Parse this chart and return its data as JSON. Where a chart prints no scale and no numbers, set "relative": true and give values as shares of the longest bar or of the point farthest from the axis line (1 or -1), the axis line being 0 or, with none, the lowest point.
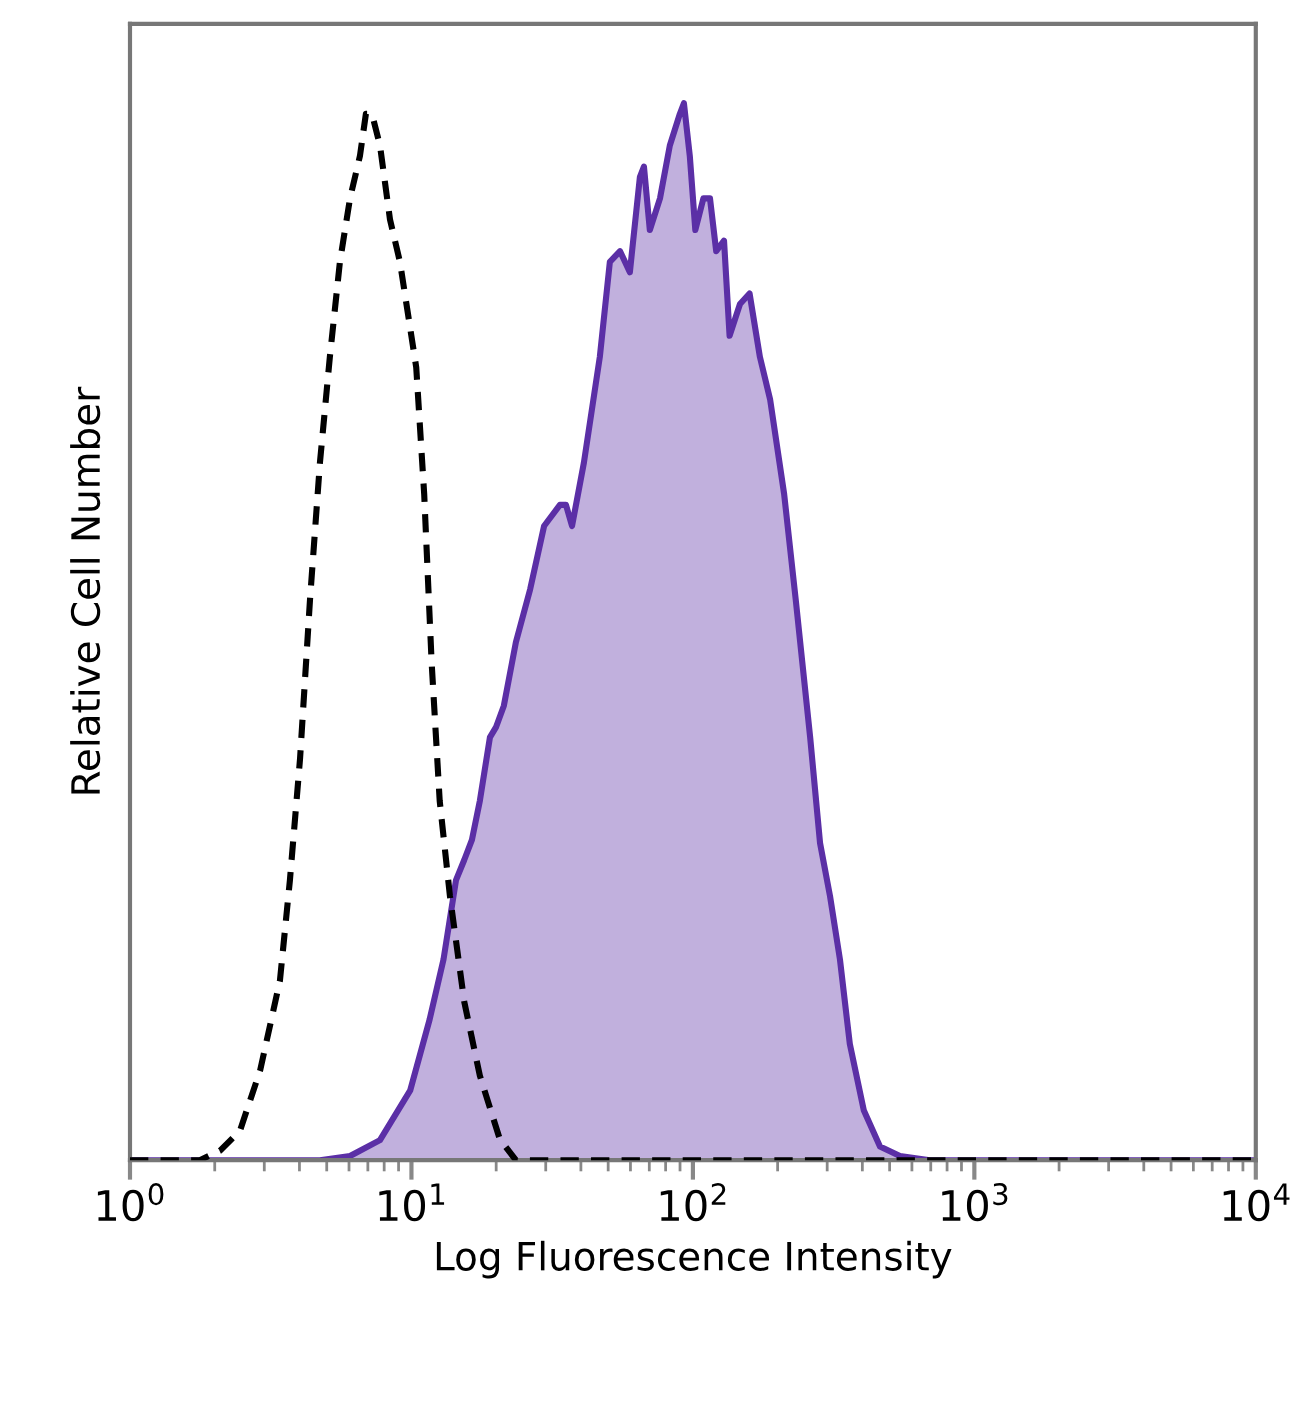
{
  "chart_data": {
    "type": "area",
    "relative": true,
    "xlabel": "Log Fluorescence Intensity",
    "ylabel": "Relative Cell Number",
    "log": "x",
    "xlim": [
      1,
      10000
    ],
    "xticks": [
      {
        "value": 1,
        "label": "10$^{0}$"
      },
      {
        "value": 10,
        "label": "10$^{1}$"
      },
      {
        "value": 100,
        "label": "10$^{2}$"
      },
      {
        "value": 1000,
        "label": "10$^{3}$"
      },
      {
        "value": 10000,
        "label": "10$^{4}$"
      }
    ],
    "tick_labels": "x",
    "grid": false,
    "series": [
      {
        "color": "#5b2fa6",
        "x": [
          1,
          4.73,
          6.05,
          7.73,
          9.9,
          11.6,
          13.0,
          14.4,
          15.4,
          16.4,
          17.5,
          19.0,
          20.0,
          21.3,
          23.5,
          26.4,
          29.6,
          33.7,
          35.4,
          37.2,
          41.0,
          46.7,
          50.7,
          55.1,
          59.7,
          64.8,
          67.0,
          70.3,
          76.4,
          82.8,
          89.9,
          92.9,
          97.5,
          102,
          109,
          115,
          121,
          129,
          135,
          147,
          159,
          173,
          188,
          211,
          232,
          261,
          283,
          307,
          333,
          361,
          405,
          462,
          544,
          695,
          10000
        ],
        "values": [
          0,
          0,
          0.004,
          0.019,
          0.066,
          0.133,
          0.19,
          0.265,
          0.284,
          0.303,
          0.34,
          0.4,
          0.41,
          0.43,
          0.49,
          0.54,
          0.6,
          0.62,
          0.62,
          0.6,
          0.66,
          0.76,
          0.85,
          0.86,
          0.84,
          0.93,
          0.94,
          0.88,
          0.91,
          0.96,
          0.99,
          1,
          0.95,
          0.88,
          0.91,
          0.91,
          0.86,
          0.87,
          0.78,
          0.81,
          0.82,
          0.76,
          0.72,
          0.63,
          0.53,
          0.4,
          0.3,
          0.25,
          0.19,
          0.11,
          0.047,
          0.013,
          0.004,
          0,
          0
        ]
      },
      {
        "type": "line",
        "color": "#000000",
        "line_style": "dashed",
        "x": [
          1,
          1.77,
          2.09,
          2.46,
          2.9,
          3.41,
          3.7,
          4.02,
          4.36,
          4.73,
          5.13,
          5.57,
          6.05,
          6.56,
          6.89,
          7.24,
          7.73,
          8.39,
          9.1,
          10.4,
          11.1,
          11.8,
          12.6,
          13.7,
          15.4,
          17.5,
          20.6,
          23.5,
          10000
        ],
        "values": [
          0,
          0,
          0.009,
          0.028,
          0.085,
          0.17,
          0.265,
          0.38,
          0.53,
          0.66,
          0.76,
          0.85,
          0.91,
          0.95,
          0.99,
          0.99,
          0.96,
          0.89,
          0.85,
          0.75,
          0.63,
          0.47,
          0.34,
          0.25,
          0.15,
          0.08,
          0.02,
          0,
          0
        ]
      }
    ]
  }
}
